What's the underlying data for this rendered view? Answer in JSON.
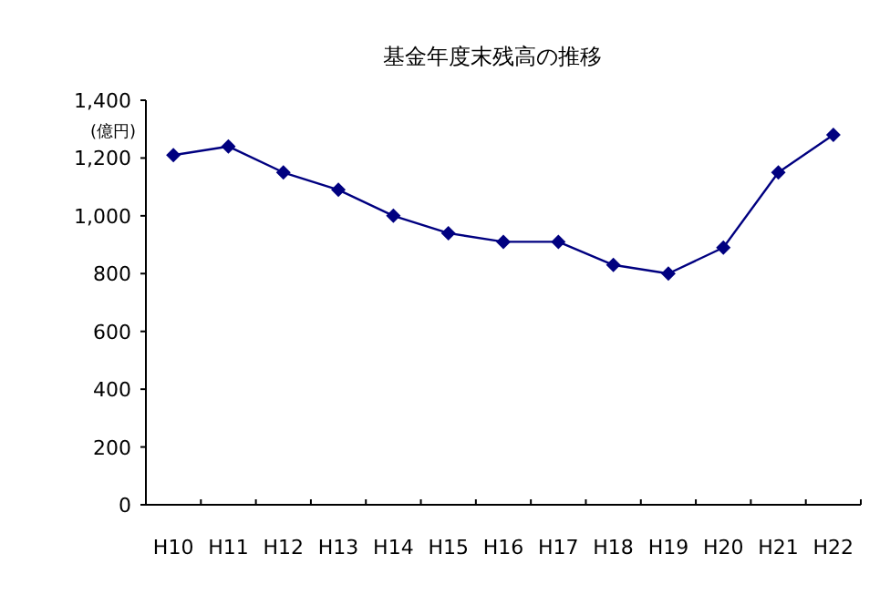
{
  "chart_data": {
    "type": "line",
    "title": "基金年度末残高の推移",
    "annotations": [
      "(億円)"
    ],
    "categories": [
      "H10",
      "H11",
      "H12",
      "H13",
      "H14",
      "H15",
      "H16",
      "H17",
      "H18",
      "H19",
      "H20",
      "H21",
      "H22"
    ],
    "series": [
      {
        "color": "#000080",
        "values": [
          1210,
          1240,
          1150,
          1090,
          1000,
          940,
          910,
          910,
          830,
          800,
          890,
          1150,
          1280
        ]
      }
    ],
    "ylim": [
      0,
      1400
    ],
    "yticks": [
      {
        "value": 0,
        "label": "0"
      },
      {
        "value": 200,
        "label": "200"
      },
      {
        "value": 400,
        "label": "400"
      },
      {
        "value": 600,
        "label": "600"
      },
      {
        "value": 800,
        "label": "800"
      },
      {
        "value": 1000,
        "label": "1,000"
      },
      {
        "value": 1200,
        "label": "1,200"
      },
      {
        "value": 1400,
        "label": "1,400"
      }
    ],
    "marker": "diamond",
    "grid": false
  }
}
